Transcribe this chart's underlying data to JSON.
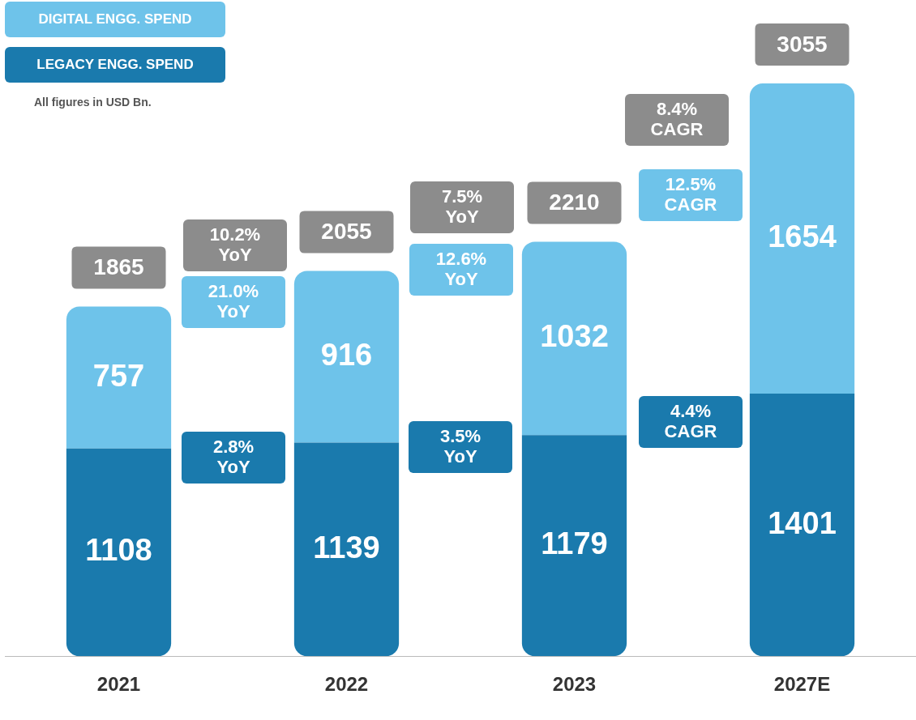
{
  "chart_data": {
    "type": "bar",
    "stacked": true,
    "categories": [
      "2021",
      "2022",
      "2023",
      "2027E"
    ],
    "series": [
      {
        "name": "LEGACY ENGG. SPEND",
        "color": "#1a7aad",
        "values": [
          1108,
          1139,
          1179,
          1401
        ]
      },
      {
        "name": "DIGITAL ENGG. SPEND",
        "color": "#6ec3ea",
        "values": [
          757,
          916,
          1032,
          1654
        ]
      }
    ],
    "data_labels": true,
    "totals": [
      "1865",
      "2055",
      "2210",
      "3055"
    ],
    "ylim": [
      0,
      3500
    ],
    "tick_labels": "x",
    "grid": false,
    "legend": "top left",
    "annotations": [
      "All figures in USD Bn.",
      "10.2% YoY",
      "21.0% YoY",
      "2.8% YoY",
      "7.5% YoY",
      "12.6% YoY",
      "3.5% YoY",
      "8.4% CAGR",
      "12.5% CAGR",
      "4.4% CAGR"
    ]
  }
}
